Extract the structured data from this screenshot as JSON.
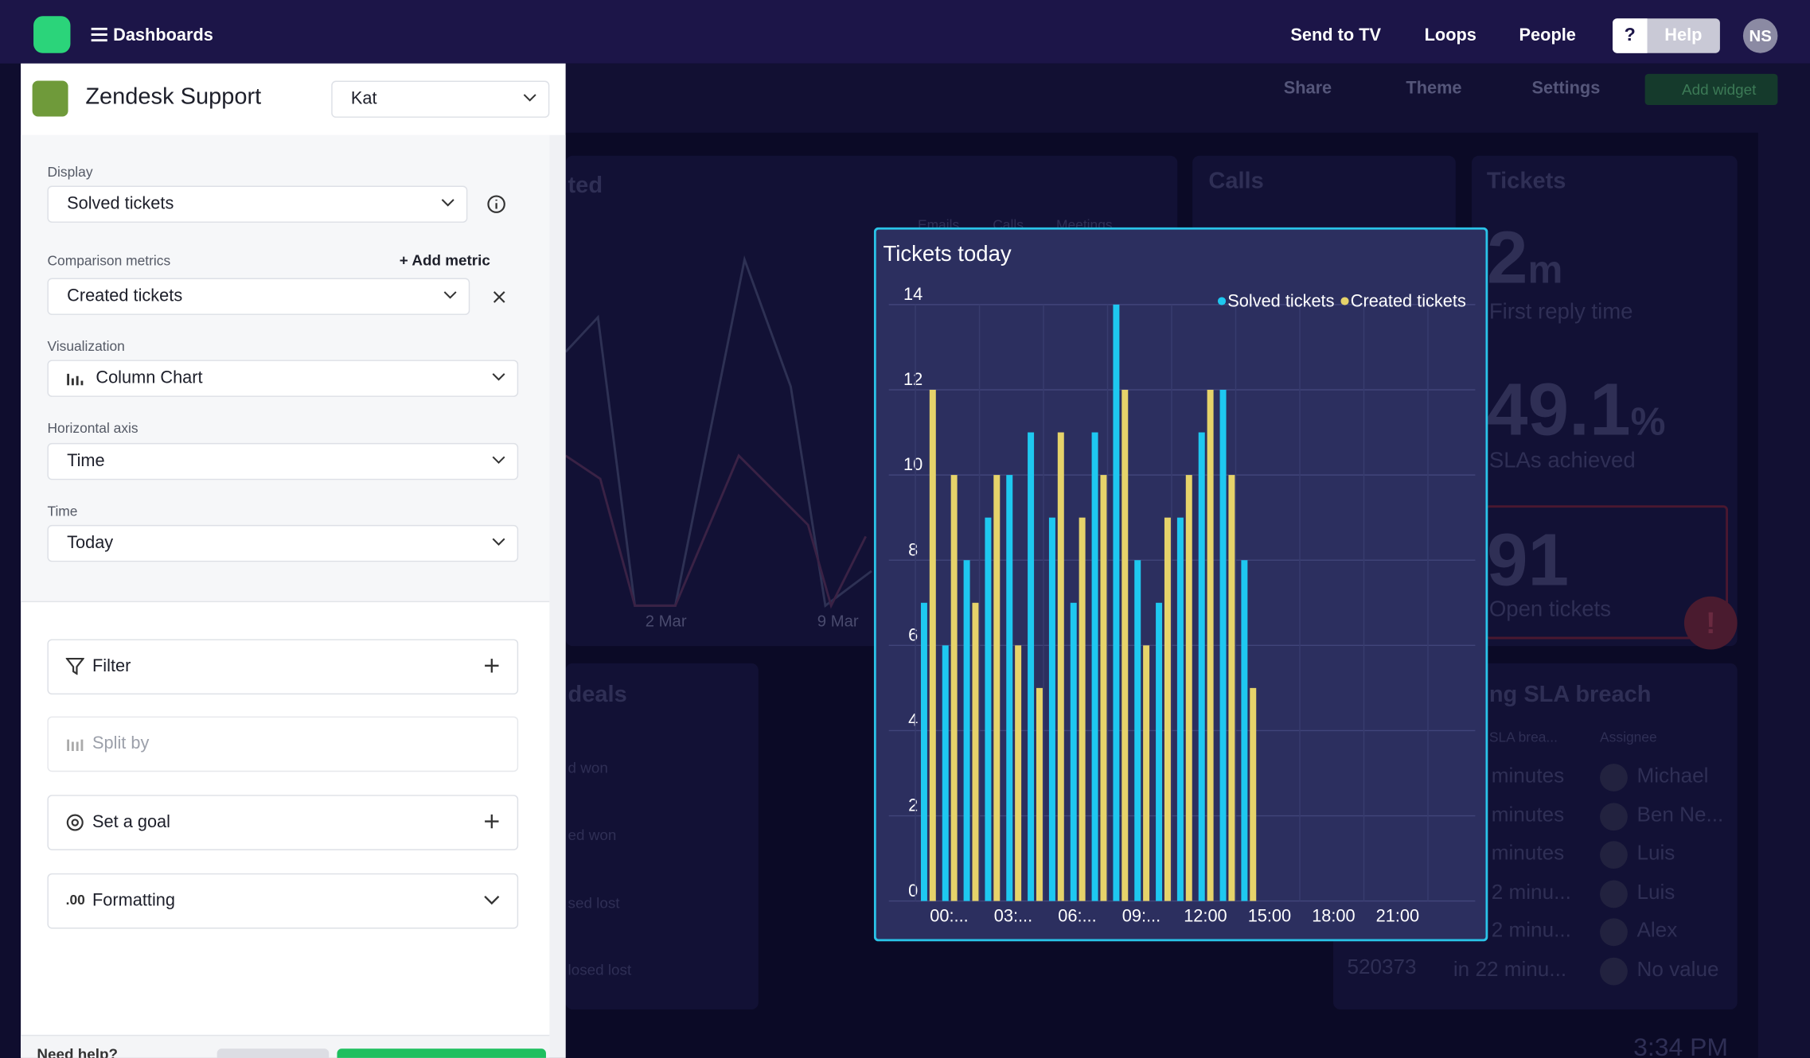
{
  "nav": {
    "brand": "Dashboards",
    "links": [
      "Send to TV",
      "Loops",
      "People"
    ],
    "help_icon": "?",
    "help": "Help",
    "avatar": "NS"
  },
  "toolbar": {
    "share": "Share",
    "theme": "Theme",
    "settings": "Settings",
    "add_widget": "Add widget"
  },
  "panel": {
    "title": "Zendesk Support",
    "account": "Kat",
    "display_label": "Display",
    "display_value": "Solved tickets",
    "comparison_label": "Comparison metrics",
    "add_metric": "Add metric",
    "comparison_value": "Created tickets",
    "visualization_label": "Visualization",
    "visualization_value": "Column Chart",
    "horizontal_axis_label": "Horizontal axis",
    "horizontal_axis_value": "Time",
    "time_label": "Time",
    "time_value": "Today",
    "filter": "Filter",
    "split_by": "Split by",
    "set_goal": "Set a goal",
    "formatting_icon": ".00",
    "formatting": "Formatting",
    "need_help": "Need help?"
  },
  "background": {
    "activity_title": "ted",
    "activity_legend": [
      "Emails",
      "Calls",
      "Meetings"
    ],
    "activity_dates": [
      "2 Mar",
      "9 Mar"
    ],
    "calls_title": "Calls",
    "tickets_title": "Tickets",
    "reply_value": "2",
    "reply_unit": "m",
    "reply_label": "First reply time",
    "sla_value": "49.1",
    "sla_unit": "%",
    "sla_label": "SLAs achieved",
    "open_value": "91",
    "open_label": "Open tickets",
    "alert": "!",
    "deals_title": "deals",
    "deals_rows": [
      "d won",
      "ed won",
      "sed lost",
      "losed lost"
    ],
    "breach_title": "ng SLA breach",
    "breach_headers": [
      "SLA brea...",
      "Assignee"
    ],
    "breach_rows": [
      [
        "minutes",
        "Michael"
      ],
      [
        "minutes",
        "Ben Ne..."
      ],
      [
        "minutes",
        "Luis"
      ],
      [
        "2 minu...",
        "Luis"
      ],
      [
        "2 minu...",
        "Alex"
      ],
      [
        "in 22 minu...",
        "No value"
      ]
    ],
    "breach_id": "520373",
    "clock": "3:34 PM"
  },
  "chart_data": {
    "type": "bar",
    "title": "Tickets today",
    "categories": [
      "00:...",
      null,
      null,
      "03:...",
      null,
      null,
      "06:...",
      null,
      null,
      "09:...",
      null,
      null,
      "12:00",
      null,
      null,
      "15:00",
      null,
      null,
      "18:00",
      null,
      null,
      "21:00",
      null,
      null
    ],
    "series": [
      {
        "name": "Solved tickets",
        "color": "#1ec8f0",
        "values": [
          7,
          6,
          8,
          9,
          10,
          11,
          9,
          7,
          11,
          14,
          8,
          7,
          9,
          11,
          12,
          8,
          null,
          null,
          null,
          null,
          null,
          null,
          null,
          null
        ]
      },
      {
        "name": "Created tickets",
        "color": "#e6d36a",
        "values": [
          12,
          10,
          7,
          10,
          6,
          5,
          11,
          9,
          10,
          12,
          6,
          9,
          10,
          12,
          10,
          5,
          null,
          null,
          null,
          null,
          null,
          null,
          null,
          null
        ]
      }
    ],
    "ylim": [
      0,
      14
    ],
    "yticks": [
      0,
      2,
      4,
      6,
      8,
      10,
      12,
      14
    ],
    "grid": true,
    "legend": "top-right"
  }
}
